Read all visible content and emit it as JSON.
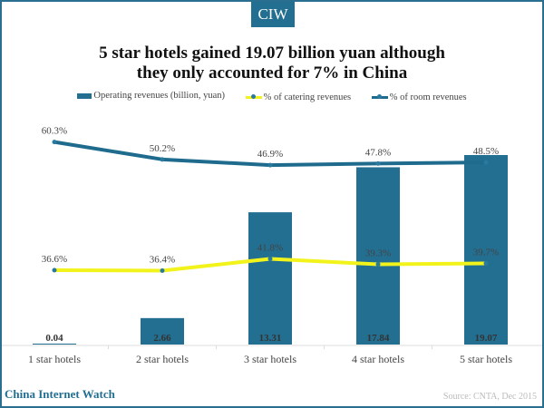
{
  "logo": "CIW",
  "brand": "China Internet Watch",
  "source": "Source: CNTA, Dec 2015",
  "colors": {
    "bar": "#236f91",
    "room": "#1f6b8e",
    "catering": "#f3f31c"
  },
  "chart_data": {
    "type": "bar+line",
    "title": "5 star hotels gained 19.07 billion yuan although they only accounted for 7% in China",
    "categories": [
      "1 star hotels",
      "2 star hotels",
      "3 star hotels",
      "4 star hotels",
      "5 star hotels"
    ],
    "legend_position": "top",
    "series": [
      {
        "name": "Operating revenues (billion, yuan)",
        "type": "bar",
        "values": [
          0.04,
          2.66,
          13.31,
          17.84,
          19.07
        ],
        "labels": [
          "0.04",
          "2.66",
          "13.31",
          "17.84",
          "19.07"
        ]
      },
      {
        "name": "% of catering revenues",
        "type": "line",
        "values": [
          36.6,
          36.4,
          41.8,
          39.3,
          39.7
        ],
        "labels": [
          "36.6%",
          "36.4%",
          "41.8%",
          "39.3%",
          "39.7%"
        ]
      },
      {
        "name": "% of room revenues",
        "type": "line",
        "values": [
          60.3,
          50.2,
          46.9,
          47.8,
          48.5
        ],
        "labels": [
          "60.3%",
          "50.2%",
          "46.9%",
          "47.8%",
          "48.5%"
        ]
      }
    ]
  }
}
